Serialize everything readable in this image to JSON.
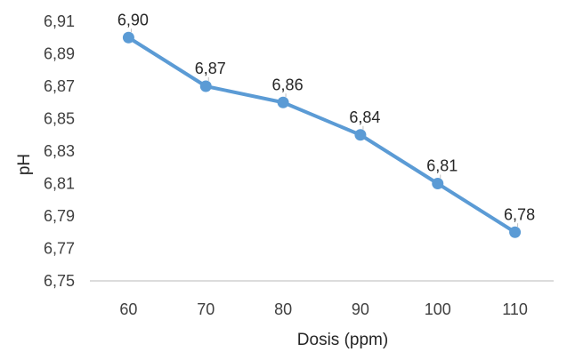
{
  "chart_data": {
    "type": "line",
    "title": "",
    "xlabel": "Dosis (ppm)",
    "ylabel": "pH",
    "categories": [
      "60",
      "70",
      "80",
      "90",
      "100",
      "110"
    ],
    "series": [
      {
        "values": [
          6.9,
          6.87,
          6.86,
          6.84,
          6.81,
          6.78
        ],
        "data_labels": [
          "6,90",
          "6,87",
          "6,86",
          "6,84",
          "6,81",
          "6,78"
        ],
        "color": "#5b9bd5"
      }
    ],
    "yticks": [
      6.75,
      6.77,
      6.79,
      6.81,
      6.83,
      6.85,
      6.87,
      6.89,
      6.91
    ],
    "ytick_labels": [
      "6,75",
      "6,77",
      "6,79",
      "6,81",
      "6,83",
      "6,85",
      "6,87",
      "6,89",
      "6,91"
    ],
    "ylim": [
      6.75,
      6.91
    ],
    "grid": false,
    "legend": "none"
  }
}
